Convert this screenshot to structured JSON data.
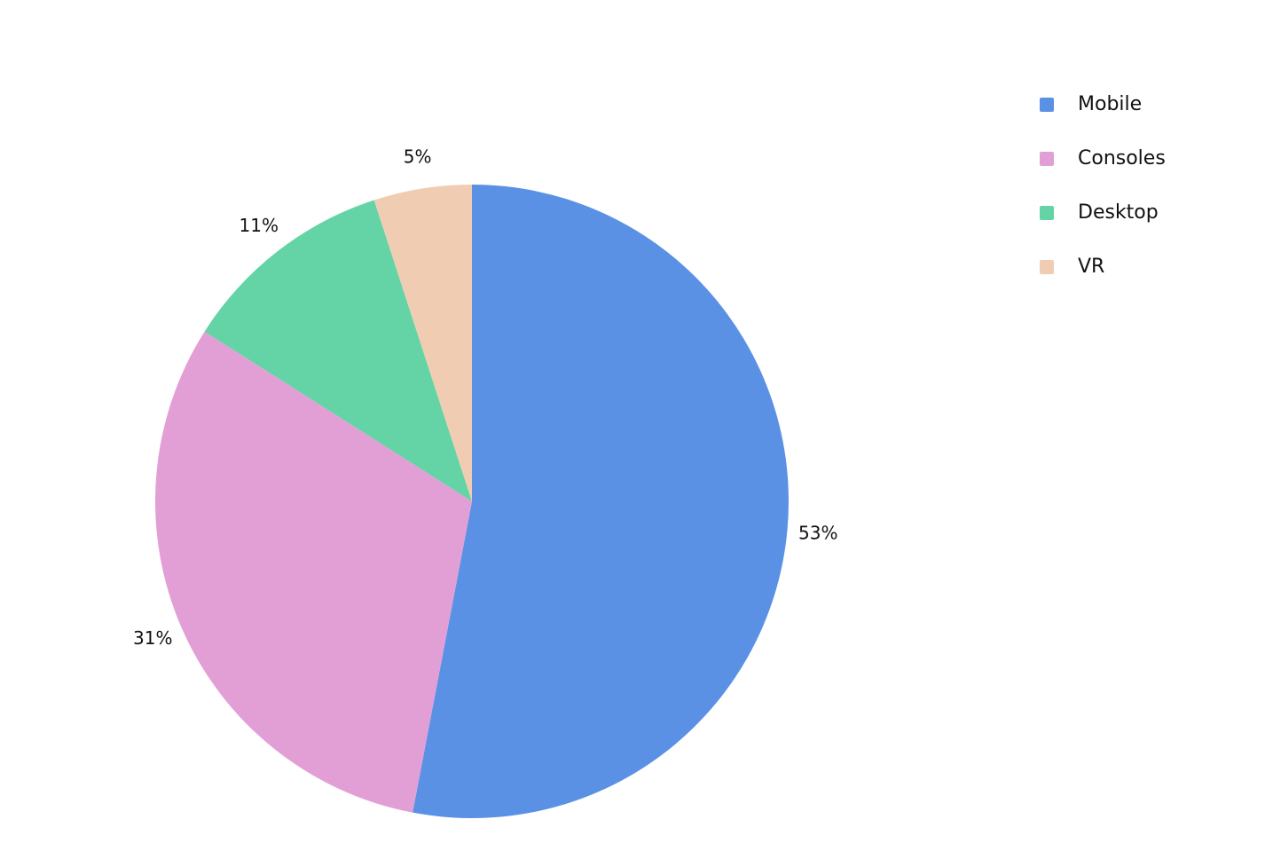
{
  "chart_data": {
    "type": "pie",
    "categories": [
      "Mobile",
      "Consoles",
      "Desktop",
      "VR"
    ],
    "values": [
      53,
      31,
      11,
      5
    ],
    "value_labels": [
      "53%",
      "31%",
      "11%",
      "5%"
    ],
    "colors": [
      "#5b91e5",
      "#e29fd6",
      "#64d3a5",
      "#f0cdb2"
    ],
    "legend": "top-right"
  }
}
